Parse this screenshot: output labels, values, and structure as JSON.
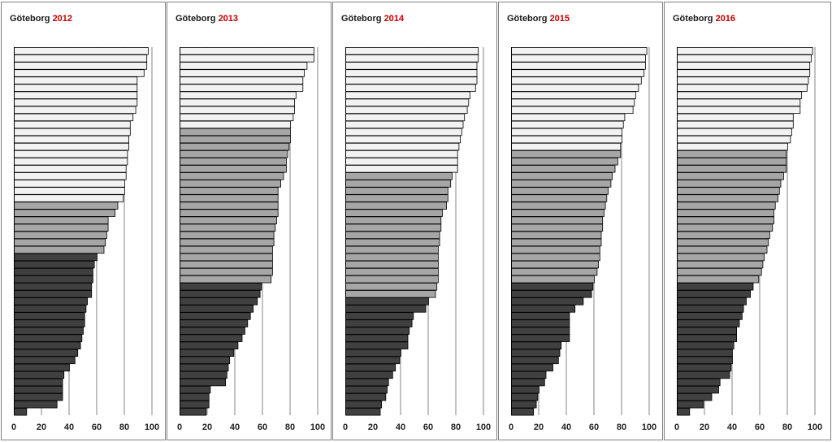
{
  "colors": {
    "light": "#f2f2f2",
    "mid": "#a6a6a6",
    "dark": "#404040",
    "year": "#c00000",
    "grid": "#868686"
  },
  "chart_data": [
    {
      "type": "bar",
      "title": {
        "city": "Göteborg",
        "year": "2012"
      },
      "orientation": "horizontal",
      "xlim": [
        0,
        100
      ],
      "xticks": [
        "0",
        "20",
        "40",
        "60",
        "80",
        "100"
      ],
      "grid": "vertical",
      "values": [
        97,
        96,
        96,
        94,
        89,
        89,
        89,
        89,
        88,
        86,
        84,
        84,
        83,
        83,
        82,
        82,
        81,
        81,
        80,
        80,
        79,
        75,
        73,
        68,
        68,
        67,
        66,
        65,
        60,
        58,
        57,
        57,
        56,
        56,
        53,
        52,
        51,
        51,
        50,
        49,
        48,
        46,
        44,
        40,
        36,
        35,
        35,
        35,
        31,
        9
      ],
      "groups": [
        "light",
        21,
        "mid",
        7,
        "dark",
        22
      ]
    },
    {
      "type": "bar",
      "title": {
        "city": "Göteborg",
        "year": "2013"
      },
      "orientation": "horizontal",
      "xlim": [
        0,
        100
      ],
      "xticks": [
        "0",
        "20",
        "40",
        "60",
        "80",
        "100"
      ],
      "grid": "vertical",
      "values": [
        97,
        97,
        92,
        90,
        89,
        89,
        84,
        83,
        83,
        82,
        80,
        80,
        80,
        79,
        78,
        77,
        77,
        75,
        73,
        71,
        71,
        71,
        71,
        70,
        69,
        68,
        68,
        67,
        67,
        67,
        67,
        66,
        59,
        58,
        56,
        53,
        51,
        49,
        47,
        45,
        42,
        39,
        36,
        35,
        34,
        33,
        22,
        21,
        21,
        19
      ],
      "groups": [
        "light",
        11,
        "mid",
        21,
        "dark",
        18
      ]
    },
    {
      "type": "bar",
      "title": {
        "city": "Göteborg",
        "year": "2014"
      },
      "orientation": "horizontal",
      "xlim": [
        0,
        100
      ],
      "xticks": [
        "0",
        "20",
        "40",
        "60",
        "80",
        "100"
      ],
      "grid": "vertical",
      "values": [
        96,
        96,
        95,
        95,
        95,
        94,
        90,
        89,
        88,
        86,
        85,
        84,
        83,
        82,
        81,
        81,
        81,
        77,
        76,
        74,
        74,
        73,
        70,
        69,
        69,
        68,
        68,
        67,
        67,
        67,
        67,
        67,
        66,
        65,
        60,
        58,
        49,
        48,
        46,
        45,
        45,
        40,
        39,
        36,
        34,
        31,
        30,
        29,
        26,
        25
      ],
      "groups": [
        "light",
        17,
        "mid",
        17,
        "dark",
        16
      ]
    },
    {
      "type": "bar",
      "title": {
        "city": "Göteborg",
        "year": "2015"
      },
      "orientation": "horizontal",
      "xlim": [
        0,
        100
      ],
      "xticks": [
        "0",
        "20",
        "40",
        "60",
        "80",
        "100"
      ],
      "grid": "vertical",
      "values": [
        98,
        97,
        97,
        96,
        94,
        92,
        90,
        89,
        88,
        82,
        81,
        80,
        80,
        79,
        79,
        77,
        75,
        73,
        72,
        70,
        69,
        68,
        67,
        66,
        66,
        65,
        65,
        64,
        64,
        63,
        62,
        60,
        59,
        58,
        52,
        46,
        42,
        42,
        42,
        42,
        36,
        35,
        34,
        30,
        25,
        24,
        20,
        19,
        18,
        16
      ],
      "groups": [
        "light",
        14,
        "mid",
        18,
        "dark",
        18
      ]
    },
    {
      "type": "bar",
      "title": {
        "city": "Göteborg",
        "year": "2016"
      },
      "orientation": "horizontal",
      "xlim": [
        0,
        100
      ],
      "xticks": [
        "0",
        "20",
        "40",
        "60",
        "80",
        "100"
      ],
      "grid": "vertical",
      "values": [
        98,
        97,
        96,
        96,
        95,
        94,
        90,
        89,
        89,
        84,
        84,
        83,
        82,
        80,
        79,
        79,
        79,
        77,
        75,
        74,
        73,
        71,
        70,
        70,
        69,
        67,
        66,
        65,
        63,
        62,
        61,
        59,
        55,
        53,
        50,
        48,
        47,
        45,
        43,
        43,
        41,
        40,
        40,
        39,
        38,
        31,
        30,
        25,
        19,
        9
      ],
      "groups": [
        "light",
        14,
        "mid",
        18,
        "dark",
        18
      ]
    }
  ]
}
